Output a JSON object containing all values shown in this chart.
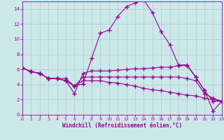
{
  "xlabel": "Windchill (Refroidissement éolien,°C)",
  "background_color": "#cce8e8",
  "grid_color": "#aacccc",
  "line_color": "#990099",
  "xlim": [
    0,
    23
  ],
  "ylim": [
    0,
    15
  ],
  "xticks": [
    0,
    1,
    2,
    3,
    4,
    5,
    6,
    7,
    8,
    9,
    10,
    11,
    12,
    13,
    14,
    15,
    16,
    17,
    18,
    19,
    20,
    21,
    22,
    23
  ],
  "yticks": [
    0,
    2,
    4,
    6,
    8,
    10,
    12,
    14
  ],
  "line1_x": [
    0,
    1,
    2,
    3,
    4,
    5,
    6,
    7,
    8,
    9,
    10,
    11,
    12,
    13,
    14,
    15,
    16,
    17,
    18,
    19,
    20,
    21,
    22,
    23
  ],
  "line1_y": [
    6.2,
    5.7,
    5.5,
    4.8,
    4.8,
    4.8,
    3.8,
    4.1,
    7.5,
    10.8,
    11.2,
    13.0,
    14.3,
    14.8,
    15.2,
    13.5,
    11.0,
    9.3,
    6.6,
    6.6,
    5.0,
    3.2,
    1.8,
    1.8
  ],
  "line2_x": [
    0,
    1,
    2,
    3,
    4,
    5,
    6,
    7,
    8,
    9,
    10,
    11,
    12,
    13,
    14,
    15,
    16,
    17,
    18,
    19,
    20,
    21,
    22,
    23
  ],
  "line2_y": [
    6.2,
    5.7,
    5.5,
    4.8,
    4.8,
    4.5,
    2.8,
    5.5,
    5.8,
    5.8,
    5.8,
    5.9,
    6.0,
    6.1,
    6.1,
    6.2,
    6.3,
    6.3,
    6.5,
    6.5,
    5.0,
    3.2,
    0.5,
    1.8
  ],
  "line3_x": [
    0,
    1,
    2,
    3,
    4,
    5,
    6,
    7,
    8,
    9,
    10,
    11,
    12,
    13,
    14,
    15,
    16,
    17,
    18,
    19,
    20,
    21,
    22,
    23
  ],
  "line3_y": [
    6.2,
    5.7,
    5.5,
    4.8,
    4.8,
    4.5,
    3.8,
    5.0,
    5.0,
    5.0,
    5.0,
    5.0,
    5.0,
    5.0,
    5.0,
    5.0,
    5.0,
    5.0,
    5.0,
    4.8,
    4.5,
    2.8,
    2.2,
    1.8
  ],
  "line4_x": [
    0,
    1,
    2,
    3,
    4,
    5,
    6,
    7,
    8,
    9,
    10,
    11,
    12,
    13,
    14,
    15,
    16,
    17,
    18,
    19,
    20,
    21,
    22,
    23
  ],
  "line4_y": [
    6.2,
    5.7,
    5.5,
    4.8,
    4.8,
    4.5,
    3.8,
    4.5,
    4.5,
    4.5,
    4.3,
    4.2,
    4.0,
    3.8,
    3.5,
    3.3,
    3.2,
    3.0,
    2.8,
    2.6,
    2.5,
    2.2,
    2.0,
    1.8
  ]
}
